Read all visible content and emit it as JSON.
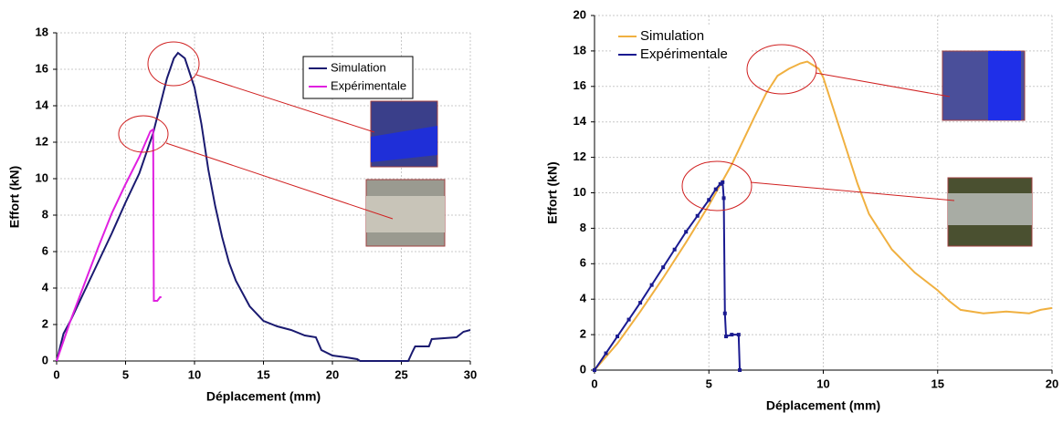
{
  "chart_data": [
    {
      "type": "line",
      "xlabel": "Déplacement (mm)",
      "ylabel": "Effort (kN)",
      "xlim": [
        0,
        30
      ],
      "xticks": [
        0,
        5,
        10,
        15,
        20,
        25,
        30
      ],
      "ylim": [
        0,
        18
      ],
      "yticks": [
        0,
        2,
        4,
        6,
        8,
        10,
        12,
        14,
        16,
        18
      ],
      "grid": true,
      "legend": "upper right",
      "series": [
        {
          "name": "Simulation",
          "color": "#1a1a70",
          "markers": false,
          "x": [
            0,
            0.5,
            1,
            2,
            3,
            4,
            5,
            6,
            7,
            7.5,
            8,
            8.5,
            8.8,
            9.3,
            10,
            10.5,
            11,
            11.5,
            12,
            12.5,
            13,
            14,
            15,
            16,
            17,
            18,
            18.8,
            19.2,
            20,
            21,
            21.8,
            22,
            25.5,
            25.8,
            26,
            27,
            27.2,
            29,
            29.5,
            30
          ],
          "values": [
            0,
            1.5,
            2.2,
            3.8,
            5.4,
            7,
            8.7,
            10.3,
            12.5,
            14,
            15.5,
            16.6,
            16.9,
            16.6,
            15,
            13,
            10.5,
            8.5,
            6.8,
            5.4,
            4.4,
            3,
            2.2,
            1.9,
            1.7,
            1.4,
            1.3,
            0.6,
            0.3,
            0.2,
            0.1,
            0,
            0,
            0.5,
            0.8,
            0.8,
            1.2,
            1.3,
            1.6,
            1.7
          ]
        },
        {
          "name": "Expérimentale",
          "color": "#e020e0",
          "markers": false,
          "x": [
            0,
            1,
            2,
            3,
            4,
            5,
            6,
            6.8,
            7,
            7.05,
            7.3,
            7.5,
            7.6
          ],
          "values": [
            0,
            2.2,
            4.2,
            6.2,
            8.1,
            9.7,
            11.2,
            12.6,
            12.7,
            3.3,
            3.3,
            3.5,
            3.5
          ]
        }
      ]
    },
    {
      "type": "line",
      "xlabel": "Déplacement (mm)",
      "ylabel": "Effort (kN)",
      "xlim": [
        0,
        20
      ],
      "xticks": [
        0,
        5,
        10,
        15,
        20
      ],
      "ylim": [
        0,
        20
      ],
      "yticks": [
        0,
        2,
        4,
        6,
        8,
        10,
        12,
        14,
        16,
        18,
        20
      ],
      "grid": true,
      "legend": "upper left",
      "series": [
        {
          "name": "Simulation",
          "color": "#f0b040",
          "markers": false,
          "x": [
            0,
            1,
            2,
            3,
            4,
            5,
            6,
            7,
            7.5,
            8,
            8.5,
            9,
            9.3,
            9.8,
            10,
            10.5,
            11,
            11.5,
            12,
            13,
            14,
            15,
            15.5,
            16,
            17,
            18,
            19,
            19.5,
            20
          ],
          "values": [
            0,
            1.5,
            3.3,
            5.2,
            7.2,
            9.3,
            11.6,
            14.3,
            15.6,
            16.6,
            17,
            17.3,
            17.4,
            17,
            16.5,
            14.5,
            12.5,
            10.5,
            8.8,
            6.8,
            5.5,
            4.5,
            3.9,
            3.4,
            3.2,
            3.3,
            3.2,
            3.4,
            3.5
          ]
        },
        {
          "name": "Expérimentale",
          "color": "#1a1a90",
          "markers": true,
          "x": [
            0,
            0.5,
            1,
            1.5,
            2,
            2.5,
            3,
            3.5,
            4,
            4.5,
            5,
            5.3,
            5.5,
            5.6,
            5.65,
            5.7,
            5.75,
            6,
            6.3,
            6.35
          ],
          "values": [
            0,
            0.95,
            1.9,
            2.85,
            3.8,
            4.8,
            5.8,
            6.8,
            7.8,
            8.7,
            9.6,
            10.2,
            10.5,
            10.6,
            9.7,
            3.2,
            1.9,
            2,
            2,
            0
          ]
        }
      ]
    }
  ]
}
